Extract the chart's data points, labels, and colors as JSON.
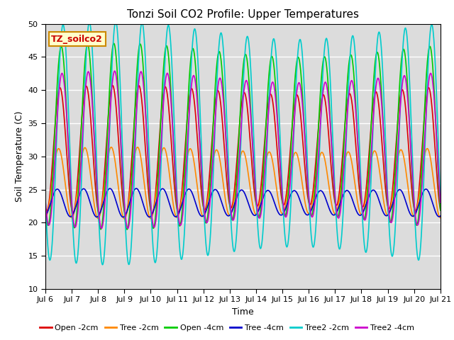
{
  "title": "Tonzi Soil CO2 Profile: Upper Temperatures",
  "xlabel": "Time",
  "ylabel": "Soil Temperature (C)",
  "ylim": [
    10,
    50
  ],
  "xlim": [
    0,
    15
  ],
  "bg_color": "#dcdcdc",
  "fig_bg_color": "#ffffff",
  "watermark_text": "TZ_soilco2",
  "watermark_color": "#cc0000",
  "watermark_bg": "#ffffcc",
  "watermark_border": "#cc8800",
  "xtick_labels": [
    "Jul 6",
    "Jul 7",
    "Jul 8",
    "Jul 9",
    "Jul 10",
    "Jul 11",
    "Jul 12",
    "Jul 13",
    "Jul 14",
    "Jul 15",
    "Jul 16",
    "Jul 17",
    "Jul 18",
    "Jul 19",
    "Jul 20",
    "Jul 21"
  ],
  "series": [
    {
      "label": "Open -2cm",
      "color": "#dd0000",
      "amp": 9,
      "mean": 31,
      "phase": 0.3
    },
    {
      "label": "Tree -2cm",
      "color": "#ff8800",
      "amp": 5,
      "mean": 26,
      "phase": 0.25
    },
    {
      "label": "Open -4cm",
      "color": "#00cc00",
      "amp": 13,
      "mean": 33,
      "phase": 0.35
    },
    {
      "label": "Tree -4cm",
      "color": "#0000cc",
      "amp": 2,
      "mean": 23,
      "phase": 0.2
    },
    {
      "label": "Tree2 -2cm",
      "color": "#00cccc",
      "amp": 17,
      "mean": 32,
      "phase": 0.42
    },
    {
      "label": "Tree2 -4cm",
      "color": "#cc00cc",
      "amp": 11,
      "mean": 31,
      "phase": 0.38
    }
  ],
  "n_points": 2000,
  "time_start": 0,
  "time_end": 15,
  "legend_fontsize": 8,
  "title_fontsize": 11,
  "axis_fontsize": 9,
  "tick_fontsize": 8,
  "linewidth": 1.2
}
